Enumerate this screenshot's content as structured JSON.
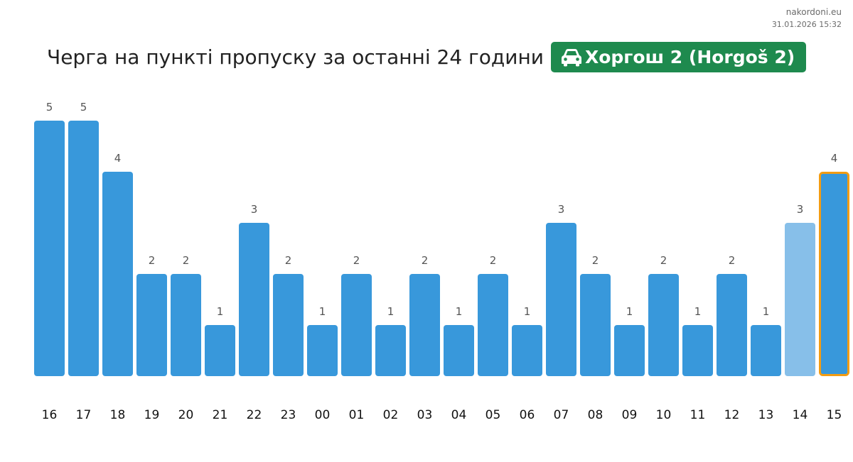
{
  "meta": {
    "site": "nakordoni.eu",
    "timestamp": "31.01.2026 15:32"
  },
  "header": {
    "title": "Черга на пункті пропуску за останні 24 години",
    "checkpoint": "Хоргош 2 (Horgoš 2)",
    "checkpoint_icon": "car-icon",
    "badge_color": "#1e8a4e"
  },
  "colors": {
    "bar": "#3898db",
    "bar_previous": "#87bfe9",
    "bar_current_border": "#f39c12",
    "value_label": "#555555",
    "tick_label": "#111111"
  },
  "chart_data": {
    "type": "bar",
    "title": "Черга на пункті пропуску за останні 24 години",
    "xlabel": "",
    "ylabel": "",
    "categories": [
      "16",
      "17",
      "18",
      "19",
      "20",
      "21",
      "22",
      "23",
      "00",
      "01",
      "02",
      "03",
      "04",
      "05",
      "06",
      "07",
      "08",
      "09",
      "10",
      "11",
      "12",
      "13",
      "14",
      "15"
    ],
    "values": [
      5,
      5,
      4,
      2,
      2,
      1,
      3,
      2,
      1,
      2,
      1,
      2,
      1,
      2,
      1,
      3,
      2,
      1,
      2,
      1,
      2,
      1,
      3,
      4
    ],
    "ylim": [
      0,
      5
    ],
    "grid": false,
    "legend": "none",
    "highlight_previous_index": 22,
    "highlight_current_index": 23
  }
}
